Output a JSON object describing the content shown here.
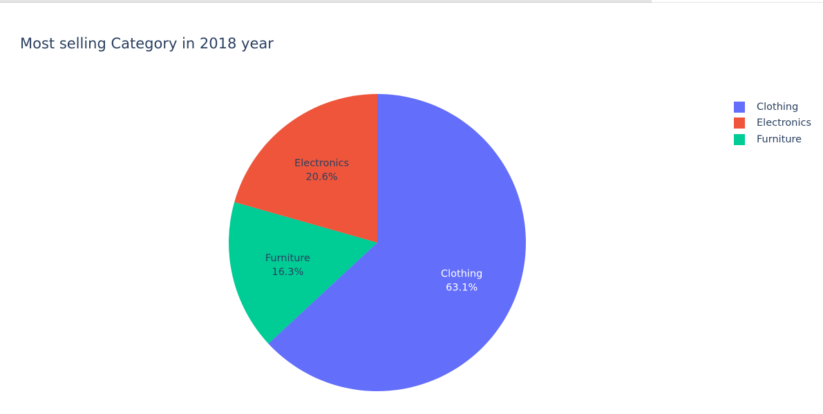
{
  "chart_data": {
    "type": "pie",
    "title": "Most selling Category in 2018 year",
    "slices": [
      {
        "label": "Clothing",
        "percent": 63.1,
        "percent_text": "63.1%",
        "color": "#636efa",
        "text_color": "#ffffff"
      },
      {
        "label": "Furniture",
        "percent": 16.3,
        "percent_text": "16.3%",
        "color": "#00cc96",
        "text_color": "#2a3f5f"
      },
      {
        "label": "Electronics",
        "percent": 20.6,
        "percent_text": "20.6%",
        "color": "#ef553b",
        "text_color": "#2a3f5f"
      }
    ],
    "direction": "clockwise",
    "start": "top",
    "legend": {
      "position": "top-right",
      "items": [
        {
          "label": "Clothing",
          "color": "#636efa"
        },
        {
          "label": "Electronics",
          "color": "#ef553b"
        },
        {
          "label": "Furniture",
          "color": "#00cc96"
        }
      ]
    }
  }
}
